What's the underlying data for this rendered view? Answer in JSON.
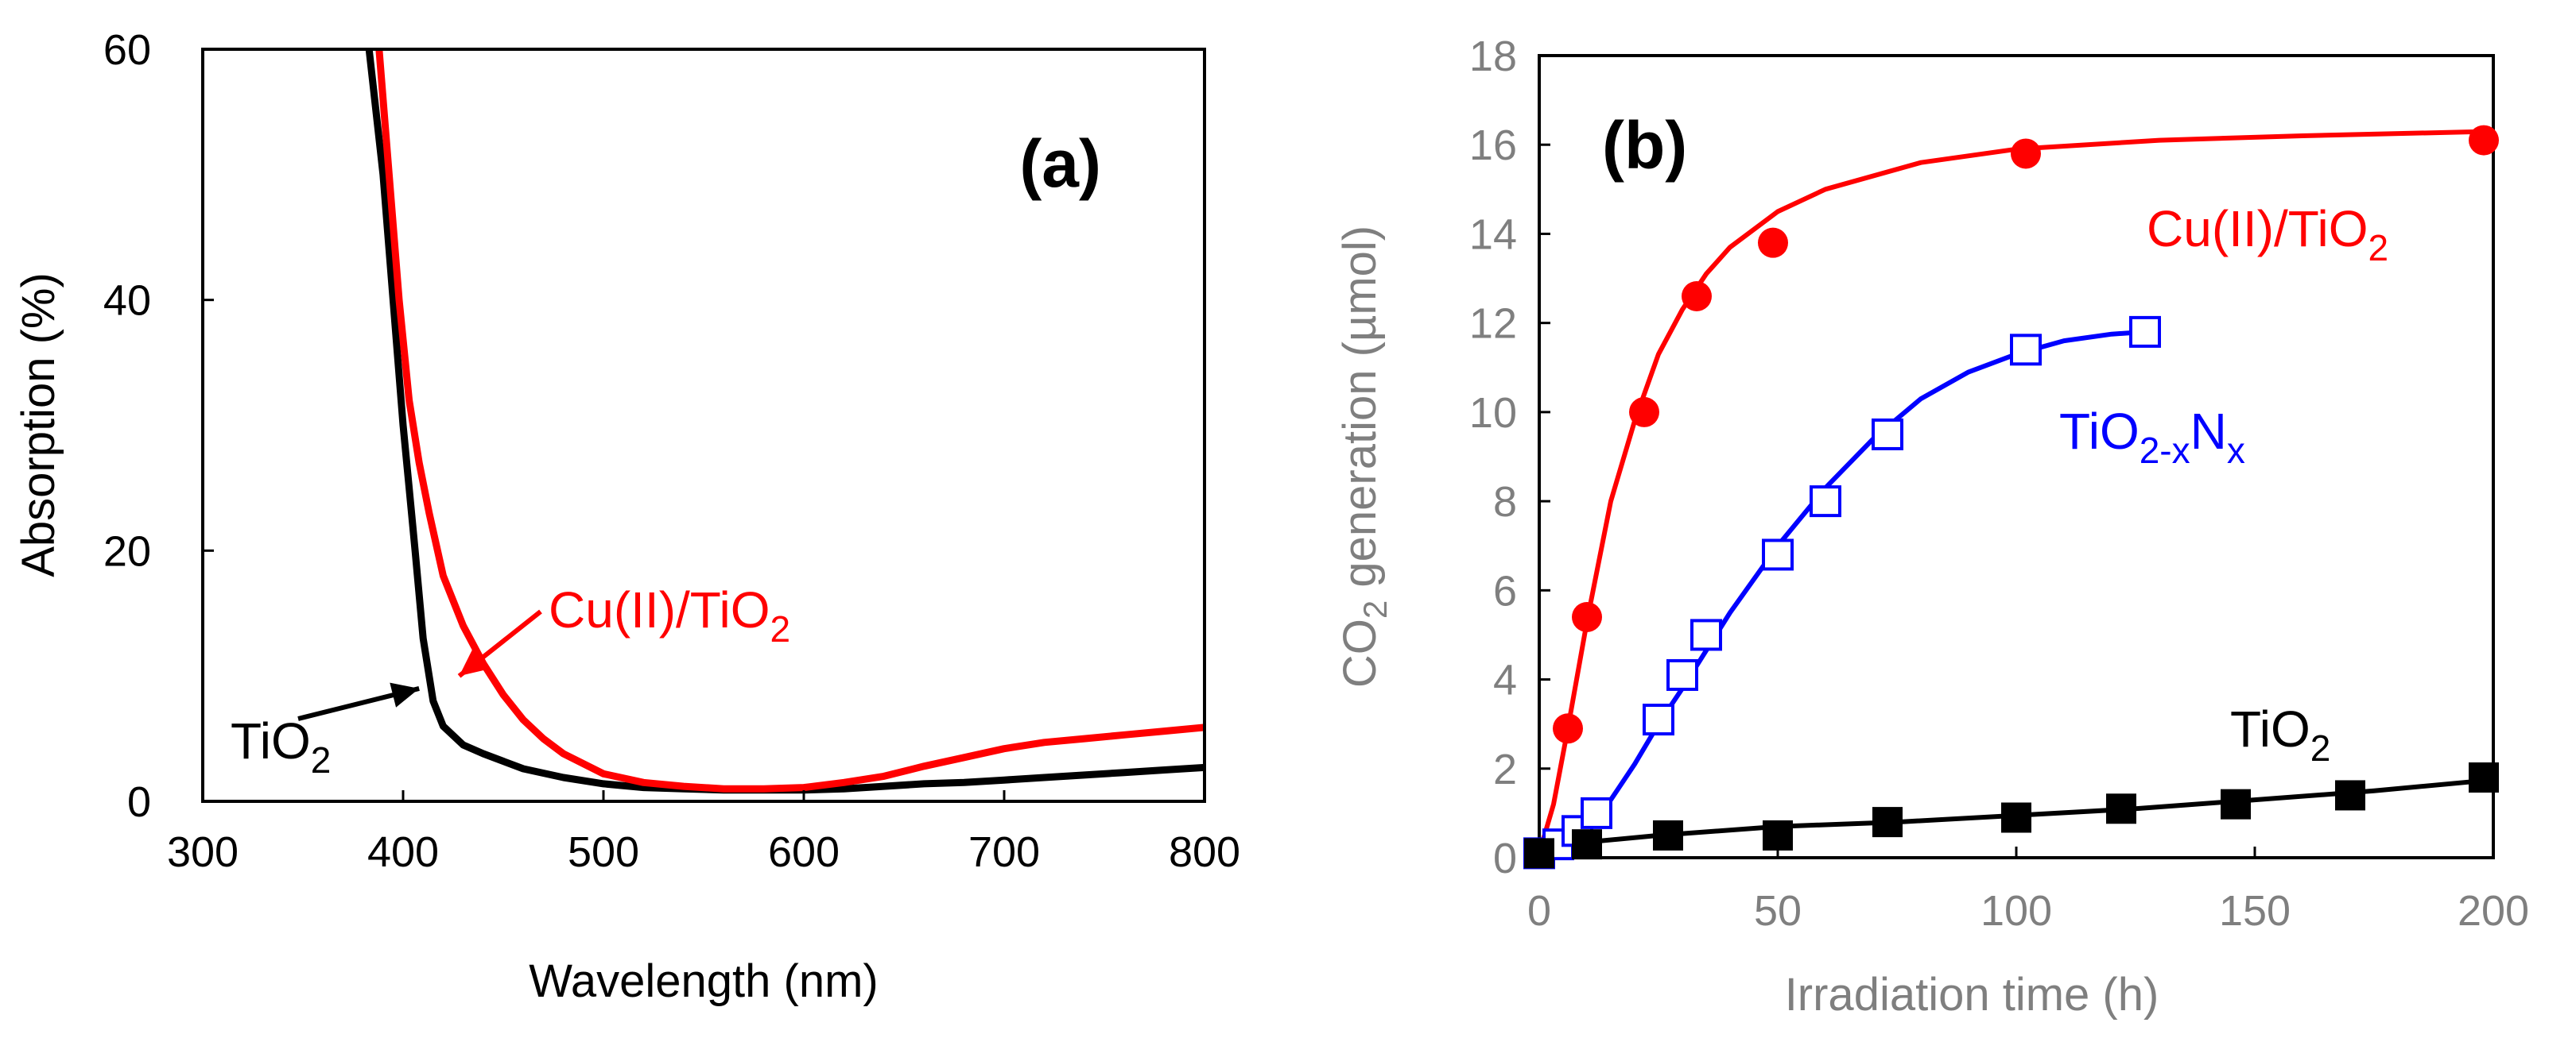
{
  "chart_data": [
    {
      "panel": "(a)",
      "type": "line",
      "xlabel": "Wavelength (nm)",
      "ylabel": "Absorption (%)",
      "xlim": [
        300,
        800
      ],
      "ylim": [
        0,
        60
      ],
      "xticks": [
        300,
        400,
        500,
        600,
        700,
        800
      ],
      "yticks": [
        0,
        20,
        40,
        60
      ],
      "colors": {
        "TiO2": "#000000",
        "Cu(II)/TiO2": "#ff0000"
      },
      "series": [
        {
          "name": "TiO2",
          "x": [
            383,
            390,
            395,
            400,
            403,
            406,
            410,
            415,
            420,
            430,
            440,
            450,
            460,
            480,
            500,
            520,
            540,
            560,
            580,
            600,
            620,
            640,
            660,
            680,
            700,
            720,
            740,
            760,
            780,
            800
          ],
          "y": [
            60,
            50,
            40,
            30,
            25,
            20,
            13,
            8,
            6,
            4.5,
            3.8,
            3.2,
            2.6,
            1.9,
            1.4,
            1.1,
            1.0,
            0.9,
            0.9,
            0.9,
            1.0,
            1.2,
            1.4,
            1.5,
            1.7,
            1.9,
            2.1,
            2.3,
            2.5,
            2.7
          ]
        },
        {
          "name": "Cu(II)/TiO2",
          "x": [
            388,
            393,
            398,
            403,
            408,
            413,
            420,
            430,
            440,
            450,
            460,
            470,
            480,
            500,
            520,
            540,
            560,
            580,
            600,
            620,
            640,
            660,
            680,
            700,
            720,
            740,
            760,
            780,
            800
          ],
          "y": [
            60,
            50,
            40,
            32,
            27,
            23,
            18,
            14,
            11,
            8.5,
            6.5,
            5,
            3.8,
            2.2,
            1.5,
            1.2,
            1.0,
            1.0,
            1.1,
            1.5,
            2.0,
            2.8,
            3.5,
            4.2,
            4.7,
            5.0,
            5.3,
            5.6,
            5.9
          ]
        }
      ],
      "annotations": [
        {
          "base": "TiO",
          "sub": "2",
          "color": "#000000",
          "arrow_to": [
            408,
            9
          ]
        },
        {
          "base": "Cu(II)/TiO",
          "sub": "2",
          "color": "#ff0000",
          "arrow_to": [
            428,
            10
          ]
        }
      ]
    },
    {
      "panel": "(b)",
      "type": "scatter",
      "xlabel": "Irradiation time (h)",
      "ylabel_parts": {
        "pre": "CO",
        "sub": "2",
        "post": " generation (µmol)"
      },
      "xlim": [
        0,
        200
      ],
      "ylim": [
        0,
        18
      ],
      "xticks": [
        0,
        50,
        100,
        150,
        200
      ],
      "yticks": [
        0,
        2,
        4,
        6,
        8,
        10,
        12,
        14,
        16,
        18
      ],
      "series": [
        {
          "name": "Cu(II)/TiO2",
          "label": {
            "base": "Cu(II)/TiO",
            "sub": "2",
            "sub_post": ""
          },
          "marker": "filled-circle",
          "color": "#ff0000",
          "x": [
            0,
            6,
            10,
            22,
            33,
            49,
            102,
            198
          ],
          "y": [
            0.1,
            2.9,
            5.4,
            10.0,
            12.6,
            13.8,
            15.8,
            16.1
          ],
          "fit_x": [
            0,
            3,
            6,
            10,
            15,
            20,
            25,
            30,
            35,
            40,
            50,
            60,
            80,
            100,
            130,
            160,
            200
          ],
          "fit_y": [
            0.1,
            1.2,
            2.9,
            5.3,
            8.0,
            9.8,
            11.3,
            12.3,
            13.1,
            13.7,
            14.5,
            15.0,
            15.6,
            15.9,
            16.1,
            16.2,
            16.3
          ]
        },
        {
          "name": "TiO2-xNx",
          "label": {
            "base": "TiO",
            "sub": "2-x",
            "mid": "N",
            "sub2": "x"
          },
          "marker": "open-square",
          "color": "#0000ff",
          "x": [
            0,
            4,
            8,
            12,
            25,
            30,
            35,
            50,
            60,
            73,
            102,
            127
          ],
          "y": [
            0.1,
            0.3,
            0.6,
            1.0,
            3.1,
            4.1,
            5.0,
            6.8,
            8.0,
            9.5,
            11.4,
            11.8
          ],
          "fit_x": [
            0,
            5,
            10,
            15,
            20,
            25,
            30,
            40,
            50,
            60,
            70,
            80,
            90,
            100,
            110,
            120,
            127
          ],
          "fit_y": [
            0.05,
            0.2,
            0.6,
            1.3,
            2.1,
            3.0,
            3.8,
            5.5,
            7.0,
            8.3,
            9.4,
            10.3,
            10.9,
            11.3,
            11.6,
            11.75,
            11.8
          ]
        },
        {
          "name": "TiO2",
          "label": {
            "base": "TiO",
            "sub": "2",
            "sub_post": ""
          },
          "marker": "filled-square",
          "color": "#000000",
          "x": [
            0,
            10,
            27,
            50,
            73,
            100,
            122,
            146,
            170,
            198
          ],
          "y": [
            0.1,
            0.3,
            0.5,
            0.5,
            0.8,
            0.9,
            1.1,
            1.2,
            1.4,
            1.8
          ],
          "fit_x": [
            0,
            10,
            25,
            50,
            75,
            100,
            125,
            150,
            175,
            200
          ],
          "fit_y": [
            0.2,
            0.35,
            0.5,
            0.7,
            0.8,
            0.95,
            1.1,
            1.3,
            1.5,
            1.75
          ]
        }
      ]
    }
  ]
}
